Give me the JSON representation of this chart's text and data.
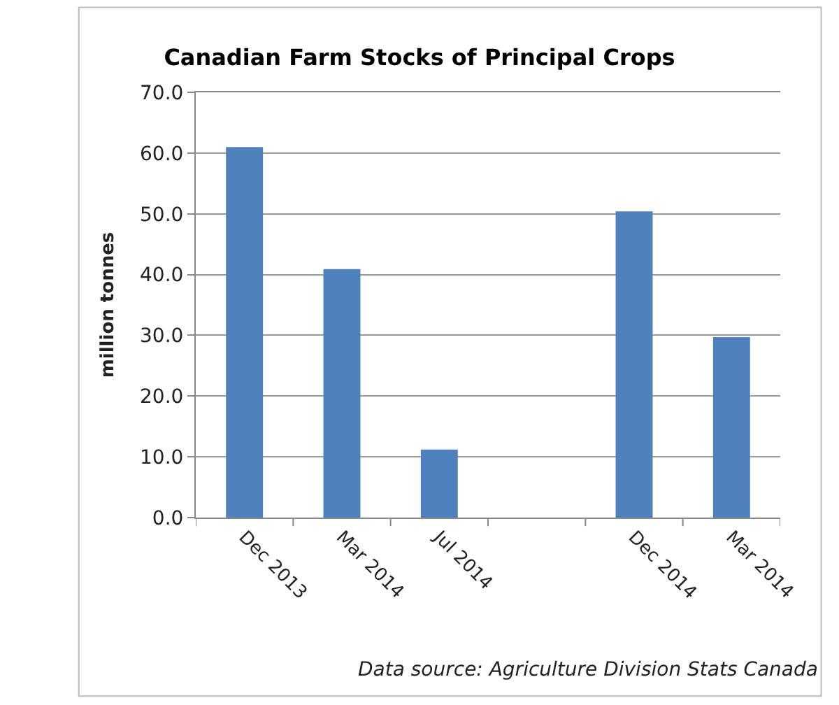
{
  "chart_data": {
    "type": "bar",
    "title": "Canadian Farm Stocks of Principal Crops",
    "ylabel": "million tonnes",
    "categories": [
      "Dec 2013",
      "Mar 2014",
      "Jul 2014",
      null,
      "Dec 2014",
      "Mar 2014"
    ],
    "values": [
      61.0,
      40.9,
      11.2,
      null,
      50.4,
      29.7
    ],
    "color": "#4f81bd",
    "ylim": [
      0,
      70
    ],
    "yticks": [
      {
        "value": 0,
        "label": "0.0"
      },
      {
        "value": 10,
        "label": "10.0"
      },
      {
        "value": 20,
        "label": "20.0"
      },
      {
        "value": 30,
        "label": "30.0"
      },
      {
        "value": 40,
        "label": "40.0"
      },
      {
        "value": 50,
        "label": "50.0"
      },
      {
        "value": 60,
        "label": "60.0"
      },
      {
        "value": 70,
        "label": "70.0"
      }
    ],
    "grid": "y",
    "annotations": [
      "Data source: Agriculture Division Stats Canada"
    ]
  }
}
